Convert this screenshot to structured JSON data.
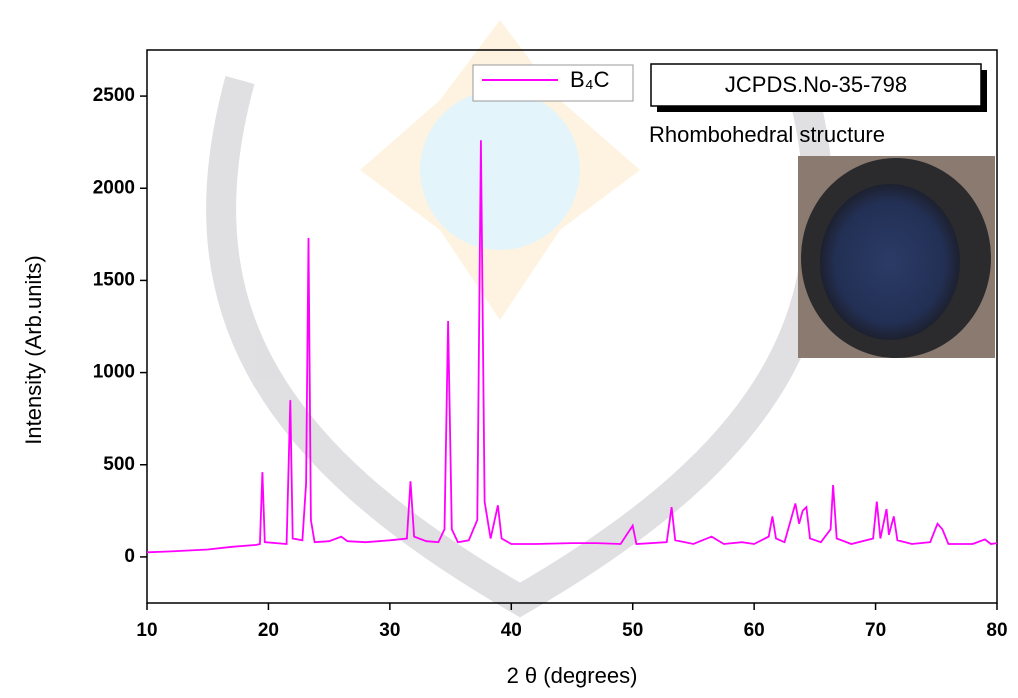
{
  "chart_data": {
    "type": "line",
    "x_label": "2 θ (degrees)",
    "y_label": "Intensity (Arb.units)",
    "x": [
      10,
      12,
      15,
      17,
      19,
      19.3,
      19.5,
      19.7,
      21.5,
      21.8,
      22.0,
      22.8,
      23.1,
      23.3,
      23.5,
      23.8,
      25,
      26,
      26.5,
      28,
      30,
      31.4,
      31.7,
      32.0,
      33,
      34,
      34.5,
      34.8,
      35.1,
      35.6,
      36.5,
      37.2,
      37.5,
      37.8,
      38.3,
      38.9,
      39.2,
      40,
      42,
      45,
      47,
      49,
      50,
      50.3,
      52.8,
      53.2,
      53.5,
      55,
      56.5,
      57.5,
      59,
      60,
      61.2,
      61.5,
      61.8,
      62.5,
      63.4,
      63.7,
      64.0,
      64.3,
      64.6,
      65.5,
      66.3,
      66.5,
      66.8,
      68,
      69.8,
      70.1,
      70.4,
      70.9,
      71.1,
      71.5,
      71.8,
      73,
      74.5,
      75.1,
      75.5,
      76,
      78,
      79,
      79.5,
      80
    ],
    "series": [
      {
        "name": "B₄C",
        "color": "#ff00ff",
        "values": [
          25,
          30,
          40,
          55,
          65,
          70,
          460,
          80,
          70,
          850,
          100,
          90,
          400,
          1730,
          200,
          80,
          85,
          110,
          85,
          80,
          90,
          100,
          410,
          110,
          85,
          80,
          150,
          1280,
          150,
          80,
          90,
          200,
          2260,
          300,
          100,
          280,
          100,
          70,
          70,
          75,
          75,
          70,
          170,
          70,
          80,
          270,
          90,
          70,
          110,
          70,
          80,
          70,
          110,
          220,
          100,
          80,
          290,
          180,
          250,
          270,
          100,
          80,
          150,
          390,
          100,
          70,
          100,
          300,
          100,
          260,
          120,
          220,
          90,
          70,
          80,
          180,
          150,
          70,
          70,
          95,
          70,
          75
        ]
      }
    ],
    "xlim": [
      10,
      80
    ],
    "ylim": [
      -250,
      2750
    ],
    "xticks": [
      10,
      20,
      30,
      40,
      50,
      60,
      70,
      80
    ],
    "yticks": [
      0,
      500,
      1000,
      1500,
      2000,
      2500
    ],
    "annotations": [
      "JCPDS.No-35-798",
      "Rhombohedral structure"
    ]
  }
}
